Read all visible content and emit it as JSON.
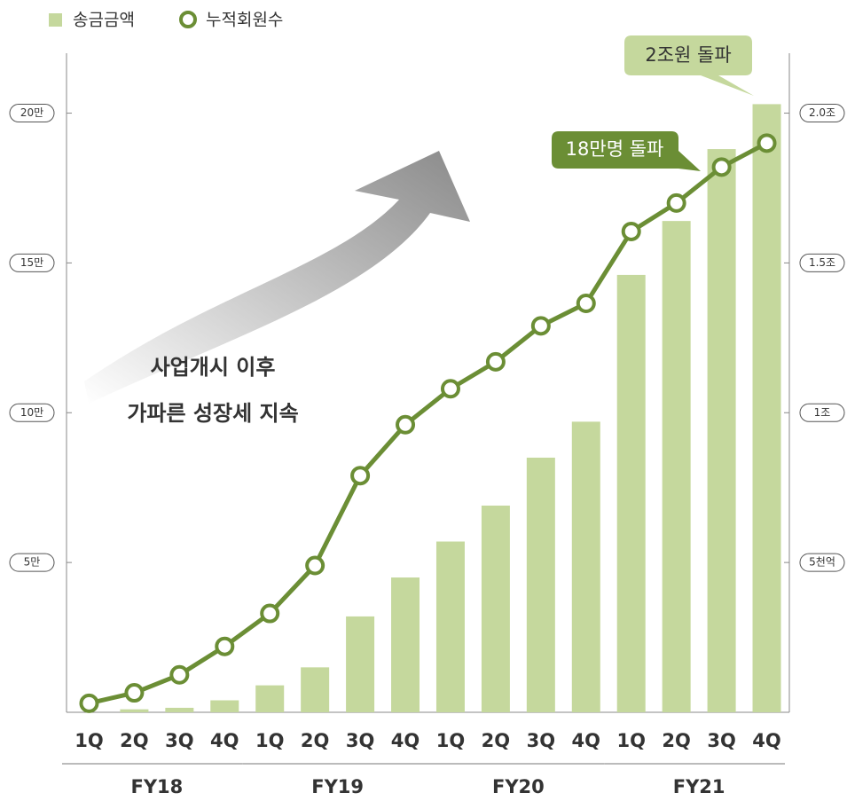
{
  "chart_data": {
    "type": "combo",
    "categories": [
      "1Q",
      "2Q",
      "3Q",
      "4Q",
      "1Q",
      "2Q",
      "3Q",
      "4Q",
      "1Q",
      "2Q",
      "3Q",
      "4Q",
      "1Q",
      "2Q",
      "3Q",
      "4Q"
    ],
    "groups": [
      "FY18",
      "FY19",
      "FY20",
      "FY21"
    ],
    "series": [
      {
        "name": "송금금액",
        "color": "#c5d89d",
        "axis": "y2",
        "values": [
          0,
          0.01,
          0.015,
          0.04,
          0.09,
          0.15,
          0.32,
          0.45,
          0.57,
          0.69,
          0.85,
          0.97,
          1.46,
          1.64,
          1.88,
          2.03
        ]
      },
      {
        "name": "누적회원수",
        "color": "#6b8e35",
        "values": [
          3000,
          6500,
          12500,
          22000,
          33000,
          49000,
          79000,
          96000,
          108000,
          117000,
          129000,
          136500,
          160500,
          170000,
          182000,
          190000
        ]
      }
    ],
    "ylim": [
      0,
      220000
    ],
    "yticks": [
      {
        "value": 50000,
        "label": "5만"
      },
      {
        "value": 100000,
        "label": "10만"
      },
      {
        "value": 150000,
        "label": "15만"
      },
      {
        "value": 200000,
        "label": "20만"
      }
    ],
    "y2lim": [
      0,
      2.2
    ],
    "y2ticks": [
      {
        "value": 0.5,
        "label": "5천억"
      },
      {
        "value": 1,
        "label": "1조"
      },
      {
        "value": 1.5,
        "label": "1.5조"
      },
      {
        "value": 2.0,
        "label": "2.0조"
      }
    ],
    "annotations": {
      "callout_amount": "2조원 돌파",
      "callout_members": "18만명 돌파",
      "note_line1": "사업개시 이후",
      "note_line2": "가파른 성장세 지속"
    }
  }
}
